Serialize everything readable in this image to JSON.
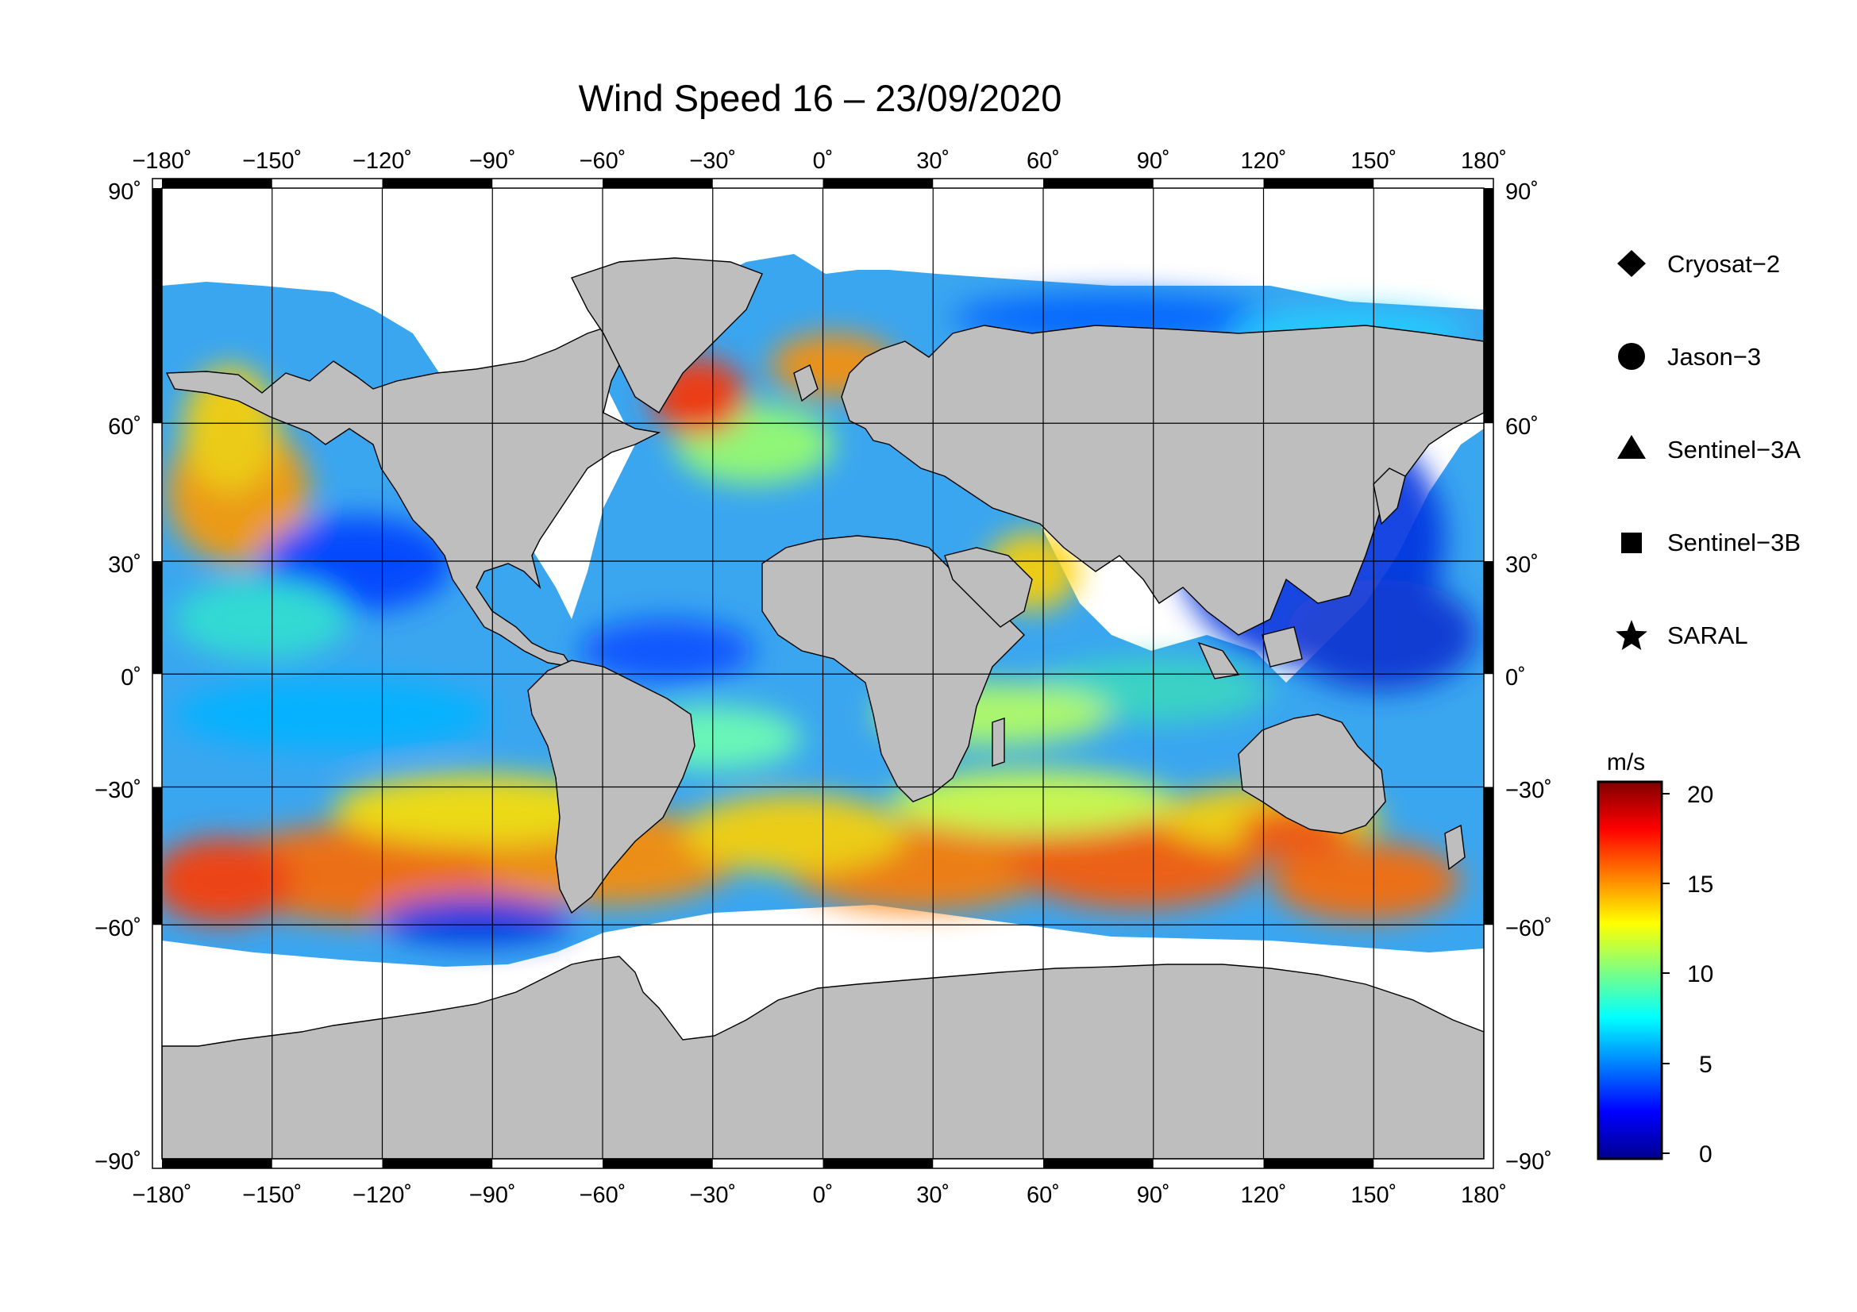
{
  "title": "Wind Speed 16 – 23/09/2020",
  "lon_ticks": [
    "−180˚",
    "−150˚",
    "−120˚",
    "−90˚",
    "−60˚",
    "−30˚",
    "0˚",
    "30˚",
    "60˚",
    "90˚",
    "120˚",
    "150˚",
    "180˚"
  ],
  "lat_ticks": [
    "90˚",
    "60˚",
    "30˚",
    "0˚",
    "−30˚",
    "−60˚",
    "−90˚"
  ],
  "legend": [
    {
      "label": "Cryosat−2",
      "marker": "diamond"
    },
    {
      "label": "Jason−3",
      "marker": "circle"
    },
    {
      "label": "Sentinel−3A",
      "marker": "triangle"
    },
    {
      "label": "Sentinel−3B",
      "marker": "square"
    },
    {
      "label": "SARAL",
      "marker": "star"
    }
  ],
  "colorbar": {
    "unit": "m/s",
    "ticks": [
      "20",
      "15",
      "10",
      "5",
      "0"
    ],
    "colors": [
      "#00008f",
      "#0000ff",
      "#0080ff",
      "#00ffff",
      "#80ff80",
      "#ffff00",
      "#ff8000",
      "#ff0000",
      "#800000"
    ]
  },
  "colors": {
    "land": "#bebebe",
    "sea_ice": "#ffffff",
    "frame": "#000000"
  }
}
